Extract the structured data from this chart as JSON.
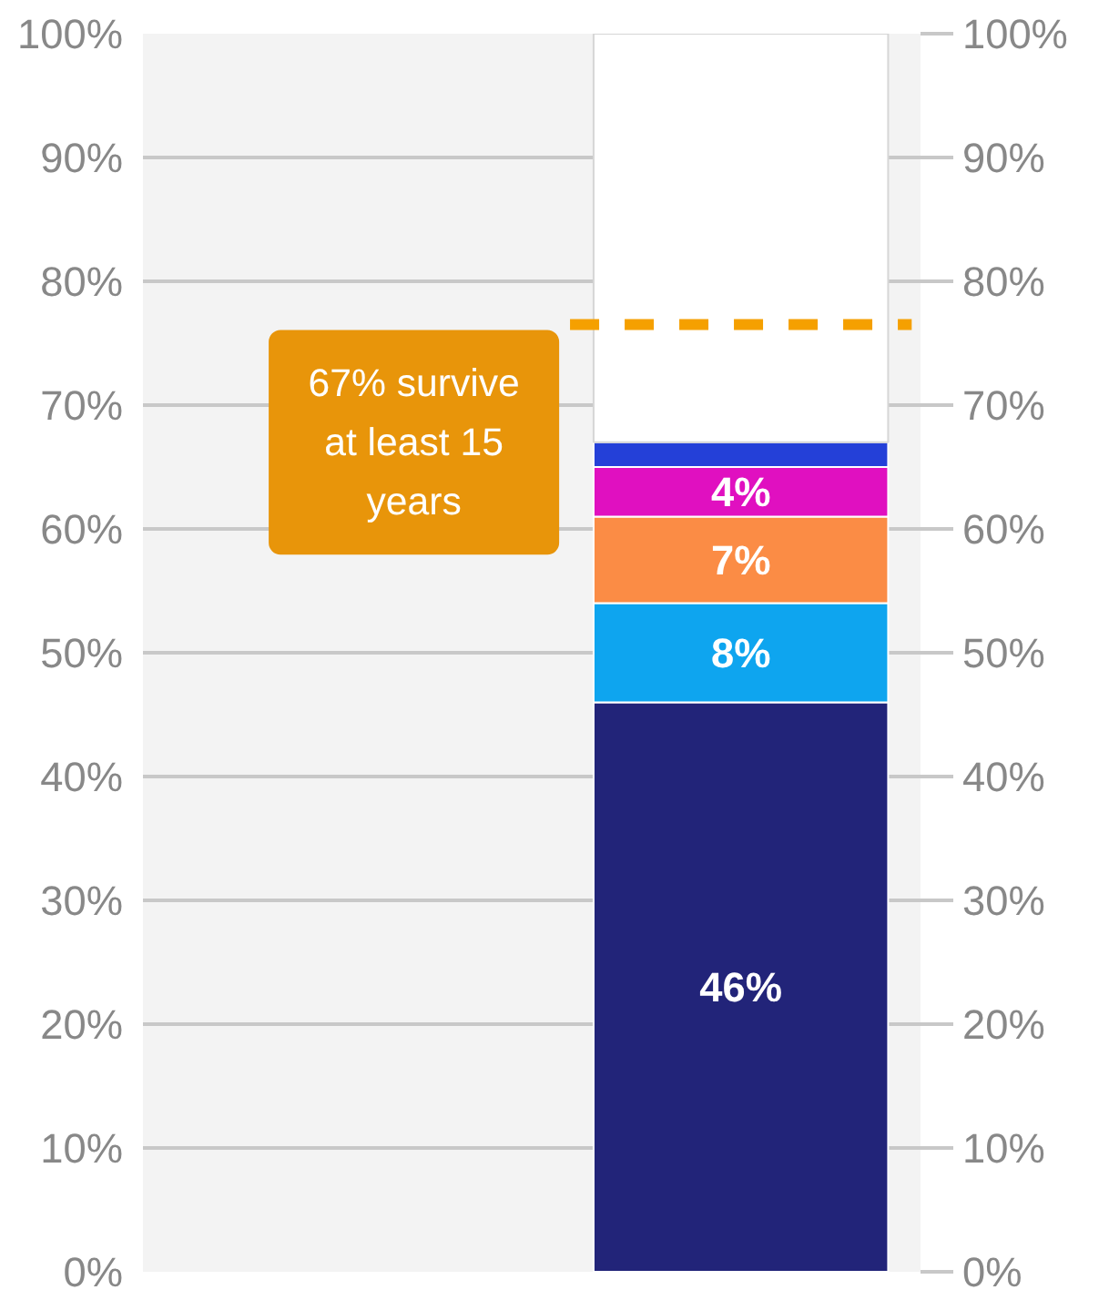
{
  "chart_data": {
    "type": "bar",
    "stacked": true,
    "categories": [
      null
    ],
    "series": [
      {
        "color": "#222479",
        "values": [
          46
        ]
      },
      {
        "color": "#0ea5ef",
        "values": [
          8
        ]
      },
      {
        "color": "#fb8c45",
        "values": [
          7
        ]
      },
      {
        "color": "#e010c0",
        "values": [
          4
        ]
      },
      {
        "color": "#2440d8",
        "values": [
          2
        ]
      },
      {
        "color": "#ffffff",
        "values": [
          33
        ]
      }
    ],
    "value_labels": [
      [
        "46%"
      ],
      [
        "8%"
      ],
      [
        "7%"
      ],
      [
        "4%"
      ],
      [
        null
      ],
      [
        null
      ]
    ],
    "ylim": [
      0,
      100
    ],
    "yticks": [
      {
        "value": 0,
        "label": "0%"
      },
      {
        "value": 10,
        "label": "10%"
      },
      {
        "value": 20,
        "label": "20%"
      },
      {
        "value": 30,
        "label": "30%"
      },
      {
        "value": 40,
        "label": "40%"
      },
      {
        "value": 50,
        "label": "50%"
      },
      {
        "value": 60,
        "label": "60%"
      },
      {
        "value": 70,
        "label": "70%"
      },
      {
        "value": 80,
        "label": "80%"
      },
      {
        "value": 90,
        "label": "90%"
      },
      {
        "value": 100,
        "label": "100%"
      }
    ],
    "y2lim": [
      0,
      100
    ],
    "y2ticks": [
      {
        "value": 0,
        "label": "0%"
      },
      {
        "value": 10,
        "label": "10%"
      },
      {
        "value": 20,
        "label": "20%"
      },
      {
        "value": 30,
        "label": "30%"
      },
      {
        "value": 40,
        "label": "40%"
      },
      {
        "value": 50,
        "label": "50%"
      },
      {
        "value": 60,
        "label": "60%"
      },
      {
        "value": 70,
        "label": "70%"
      },
      {
        "value": 80,
        "label": "80%"
      },
      {
        "value": 90,
        "label": "90%"
      },
      {
        "value": 100,
        "label": "100%"
      }
    ],
    "ref_lines": [
      {
        "axis": "y",
        "value": 76.5,
        "color": "#f5a000",
        "line_style": "dashed"
      }
    ],
    "annotations": [
      "67% survive at least 15 years"
    ],
    "grid": "y"
  }
}
